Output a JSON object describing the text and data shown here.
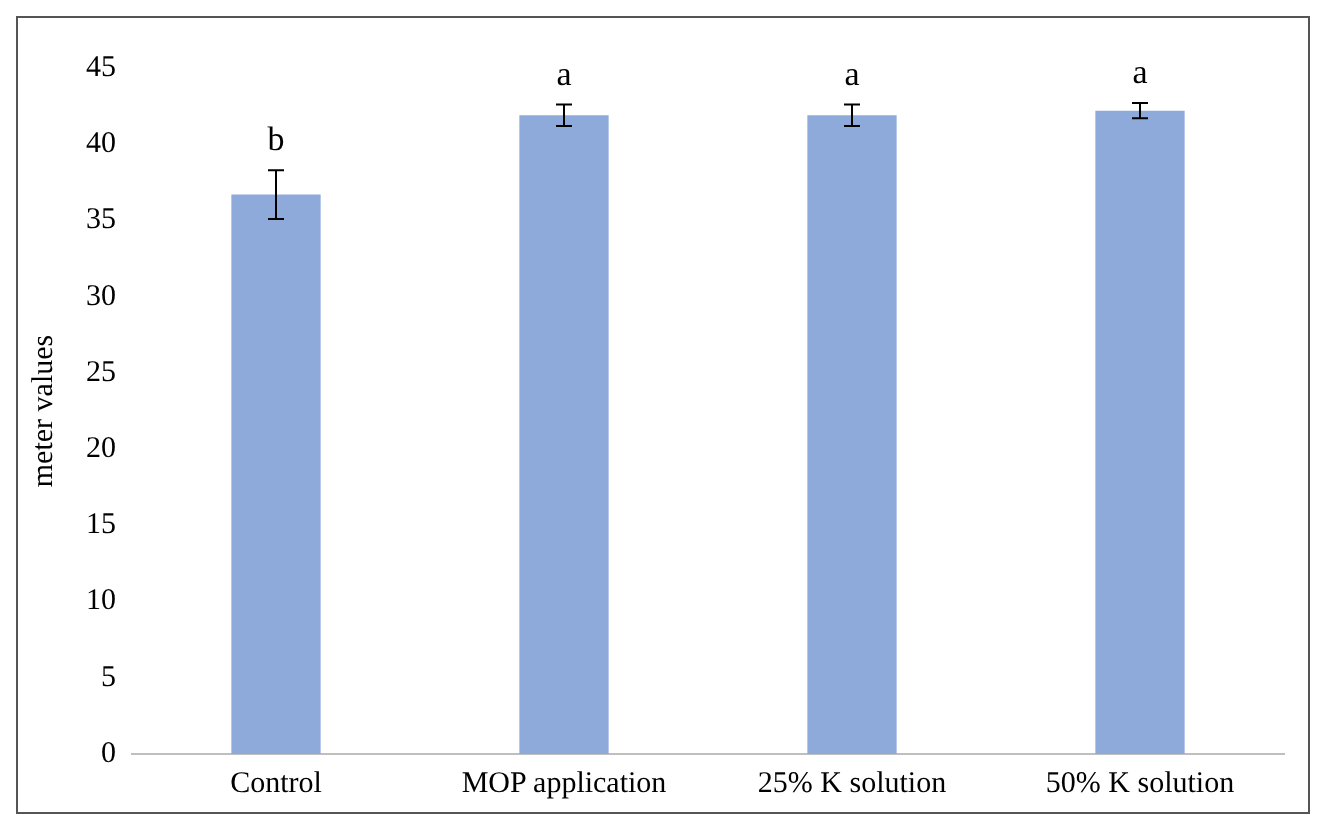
{
  "chart_data": {
    "type": "bar",
    "ylabel": "meter values",
    "categories": [
      "Control",
      "MOP application",
      "25% K solution",
      "50% K solution"
    ],
    "values": [
      36.7,
      41.9,
      41.9,
      42.2
    ],
    "errors": [
      1.6,
      0.7,
      0.7,
      0.5
    ],
    "color": "#8eaadb",
    "ylim": [
      0,
      45
    ],
    "yticks": [
      0,
      5,
      10,
      15,
      20,
      25,
      30,
      35,
      40,
      45
    ],
    "grid": false,
    "annotations": [
      {
        "text": "b",
        "x": "Control",
        "y": 38.3
      },
      {
        "text": "a",
        "x": "MOP application",
        "y": 42.6
      },
      {
        "text": "a",
        "x": "25% K solution",
        "y": 42.6
      },
      {
        "text": "a",
        "x": "50% K solution",
        "y": 42.7
      }
    ]
  }
}
